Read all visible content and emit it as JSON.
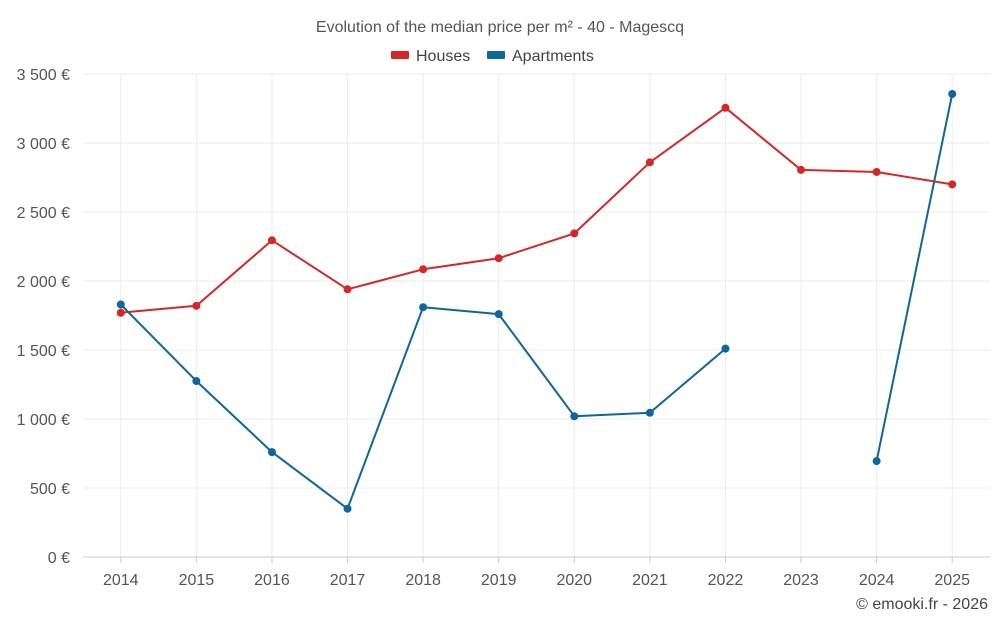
{
  "chart_data": {
    "type": "line",
    "title": "Evolution of the median price per m² - 40 - Magescq",
    "categories": [
      "2014",
      "2015",
      "2016",
      "2017",
      "2018",
      "2019",
      "2020",
      "2021",
      "2022",
      "2023",
      "2024",
      "2025"
    ],
    "series": [
      {
        "name": "Houses",
        "color": "#d62728",
        "values": [
          1770,
          1820,
          2295,
          1940,
          2085,
          2165,
          2345,
          2860,
          3255,
          2805,
          2790,
          2700
        ]
      },
      {
        "name": "Apartments",
        "color": "#0e6699",
        "values": [
          1830,
          1275,
          760,
          350,
          1810,
          1760,
          1020,
          1045,
          1510,
          null,
          695,
          3355
        ]
      }
    ],
    "ylim": [
      0,
      3500
    ],
    "yticks": [
      0,
      500,
      1000,
      1500,
      2000,
      2500,
      3000,
      3500
    ],
    "ytick_labels": [
      "0 €",
      "500 €",
      "1 000 €",
      "1 500 €",
      "2 000 €",
      "2 500 €",
      "3 000 €",
      "3 500 €"
    ],
    "xlabel": "",
    "ylabel": "",
    "grid": true,
    "legend_position": "top-center",
    "credit": "© emooki.fr - 2026"
  }
}
